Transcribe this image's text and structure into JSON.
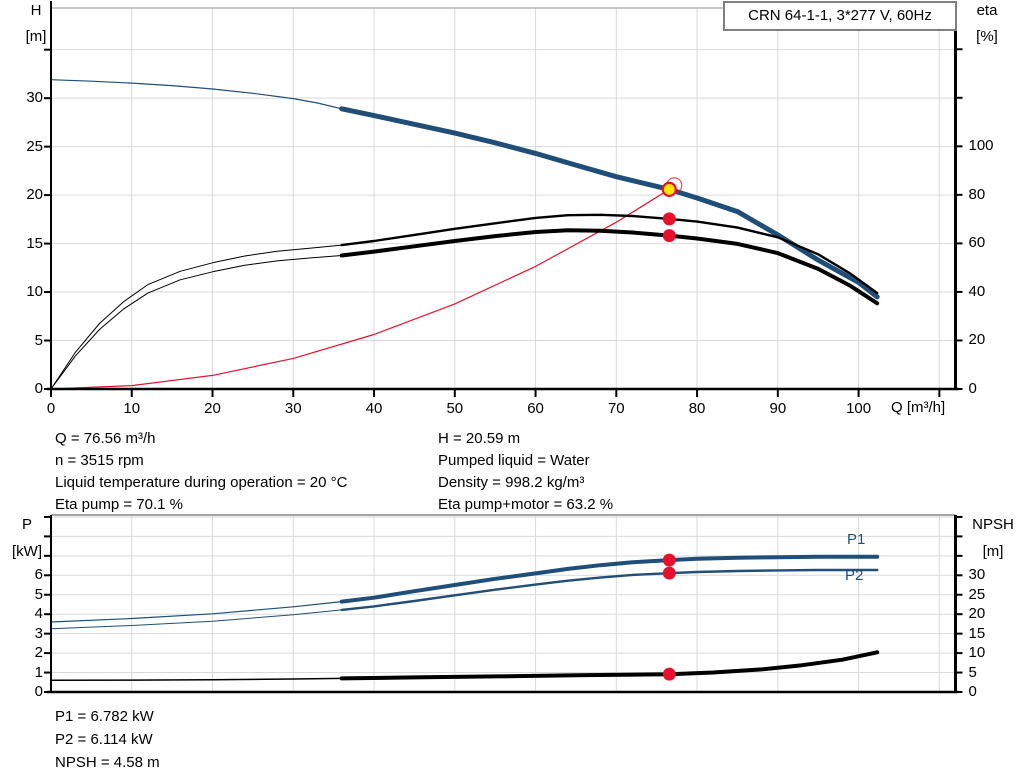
{
  "title_box": {
    "text": "CRN 64-1-1, 3*277 V, 60Hz"
  },
  "colors": {
    "curve_blue": "#1f4e79",
    "curve_black": "#000000",
    "curve_red": "#e8112d",
    "duty_yellow": "#ffe600",
    "grid": "#d9d9d9",
    "axis": "#000000",
    "border_gray": "#a6a6a6"
  },
  "info_top": {
    "left": [
      "Q = 76.56 m³/h",
      "n = 3515 rpm",
      "Liquid temperature during operation = 20 °C",
      "Eta pump = 70.1 %"
    ],
    "right": [
      "H = 20.59 m",
      "Pumped liquid = Water",
      "Density = 998.2 kg/m³",
      "Eta pump+motor = 63.2 %"
    ]
  },
  "info_bottom": [
    "P1 = 6.782 kW",
    "P2 = 6.114 kW",
    "NPSH = 4.58 m"
  ],
  "chart_data": [
    {
      "type": "line",
      "title": "Pump head / efficiency curves",
      "x_axis": {
        "label": "Q [m³/h]",
        "min": 0,
        "max": 112,
        "show_tick_marks": true,
        "ticks": [
          {
            "v": 0,
            "label": "0"
          },
          {
            "v": 10,
            "label": "10"
          },
          {
            "v": 20,
            "label": "20"
          },
          {
            "v": 30,
            "label": "30"
          },
          {
            "v": 40,
            "label": "40"
          },
          {
            "v": 50,
            "label": "50"
          },
          {
            "v": 60,
            "label": "60"
          },
          {
            "v": 70,
            "label": "70"
          },
          {
            "v": 80,
            "label": "80"
          },
          {
            "v": 90,
            "label": "90"
          },
          {
            "v": 100,
            "label": "100"
          },
          {
            "v": 110,
            "label": ""
          }
        ]
      },
      "y_left": {
        "label": [
          "H",
          "[m]"
        ],
        "min": 0,
        "max": 39.3,
        "ticks": [
          {
            "v": 0,
            "label": "0"
          },
          {
            "v": 5,
            "label": "5"
          },
          {
            "v": 10,
            "label": "10"
          },
          {
            "v": 15,
            "label": "15"
          },
          {
            "v": 20,
            "label": "20"
          },
          {
            "v": 25,
            "label": "25"
          },
          {
            "v": 30,
            "label": "30"
          },
          {
            "v": 35,
            "label": ""
          }
        ]
      },
      "y_right": {
        "label": [
          "eta",
          "[%]"
        ],
        "min": 0,
        "max": 157,
        "ticks": [
          {
            "v": 0,
            "label": "0"
          },
          {
            "v": 20,
            "label": "20"
          },
          {
            "v": 40,
            "label": "40"
          },
          {
            "v": 60,
            "label": "60"
          },
          {
            "v": 80,
            "label": "80"
          },
          {
            "v": 100,
            "label": "100"
          },
          {
            "v": 120,
            "label": ""
          },
          {
            "v": 140,
            "label": ""
          }
        ]
      },
      "series": [
        {
          "name": "head-curve",
          "axis": "left",
          "color": "#1f4e79",
          "split_q": 36,
          "w_thin": 1.2,
          "w_thick": 5,
          "points": [
            [
              0,
              31.9
            ],
            [
              5,
              31.75
            ],
            [
              10,
              31.55
            ],
            [
              15,
              31.3
            ],
            [
              20,
              30.95
            ],
            [
              25,
              30.5
            ],
            [
              30,
              29.95
            ],
            [
              33,
              29.5
            ],
            [
              36,
              28.9
            ],
            [
              40,
              28.2
            ],
            [
              45,
              27.3
            ],
            [
              50,
              26.4
            ],
            [
              55,
              25.4
            ],
            [
              60,
              24.3
            ],
            [
              65,
              23.1
            ],
            [
              70,
              21.9
            ],
            [
              76.56,
              20.59
            ],
            [
              80,
              19.7
            ],
            [
              85,
              18.3
            ],
            [
              90,
              15.9
            ],
            [
              95,
              13.3
            ],
            [
              100,
              11.0
            ],
            [
              102.3,
              9.5
            ]
          ]
        },
        {
          "name": "system-curve",
          "axis": "left",
          "color": "#e8112d",
          "split_q": null,
          "w_thin": 1.2,
          "w_thick": 1.2,
          "points": [
            [
              0,
              0
            ],
            [
              10,
              0.35
            ],
            [
              20,
              1.4
            ],
            [
              30,
              3.16
            ],
            [
              40,
              5.62
            ],
            [
              50,
              8.78
            ],
            [
              60,
              12.65
            ],
            [
              70,
              17.21
            ],
            [
              76.56,
              20.59
            ]
          ]
        },
        {
          "name": "eta-pump-curve",
          "axis": "right",
          "color": "#000000",
          "split_q": 36,
          "w_thin": 1,
          "w_thick": 2.4,
          "points": [
            [
              0,
              0
            ],
            [
              3,
              15
            ],
            [
              6,
              27
            ],
            [
              9,
              36
            ],
            [
              12,
              43
            ],
            [
              16,
              48.5
            ],
            [
              20,
              52
            ],
            [
              24,
              54.8
            ],
            [
              28,
              56.8
            ],
            [
              32,
              58
            ],
            [
              36,
              59.3
            ],
            [
              40,
              61
            ],
            [
              45,
              63.5
            ],
            [
              50,
              66
            ],
            [
              55,
              68.3
            ],
            [
              60,
              70.5
            ],
            [
              64,
              71.6
            ],
            [
              68,
              71.8
            ],
            [
              72,
              71.3
            ],
            [
              76.56,
              70.1
            ],
            [
              80,
              69
            ],
            [
              85,
              66.5
            ],
            [
              90,
              62.5
            ],
            [
              95,
              55.5
            ],
            [
              99,
              47.5
            ],
            [
              102.3,
              39.5
            ]
          ]
        },
        {
          "name": "eta-pump-motor-curve",
          "axis": "right",
          "color": "#000000",
          "split_q": 36,
          "w_thin": 1,
          "w_thick": 4,
          "points": [
            [
              0,
              0
            ],
            [
              3,
              13.5
            ],
            [
              6,
              24.5
            ],
            [
              9,
              33
            ],
            [
              12,
              39.5
            ],
            [
              16,
              45
            ],
            [
              20,
              48.3
            ],
            [
              24,
              51
            ],
            [
              28,
              52.8
            ],
            [
              32,
              54
            ],
            [
              36,
              55
            ],
            [
              40,
              56.6
            ],
            [
              45,
              58.8
            ],
            [
              50,
              61
            ],
            [
              55,
              63
            ],
            [
              60,
              64.7
            ],
            [
              64,
              65.4
            ],
            [
              68,
              65.2
            ],
            [
              72,
              64.5
            ],
            [
              76.56,
              63.2
            ],
            [
              80,
              62
            ],
            [
              85,
              59.8
            ],
            [
              90,
              56
            ],
            [
              95,
              49.5
            ],
            [
              99,
              42.5
            ],
            [
              102.3,
              35.3
            ]
          ]
        }
      ],
      "markers": [
        {
          "name": "duty-point",
          "q": 76.56,
          "v": 20.59,
          "axis": "left",
          "style": "duty"
        },
        {
          "name": "eta-pump-point",
          "q": 76.56,
          "v": 70.1,
          "axis": "right",
          "style": "dot"
        },
        {
          "name": "eta-pump-motor-point",
          "q": 76.56,
          "v": 63.2,
          "axis": "right",
          "style": "dot"
        }
      ],
      "curve_labels": []
    },
    {
      "type": "line",
      "title": "Power / NPSH curves",
      "x_axis": {
        "label": "",
        "min": 0,
        "max": 112,
        "show_tick_marks": false,
        "ticks": [
          {
            "v": 10,
            "label": ""
          },
          {
            "v": 20,
            "label": ""
          },
          {
            "v": 30,
            "label": ""
          },
          {
            "v": 40,
            "label": ""
          },
          {
            "v": 50,
            "label": ""
          },
          {
            "v": 60,
            "label": ""
          },
          {
            "v": 70,
            "label": ""
          },
          {
            "v": 80,
            "label": ""
          },
          {
            "v": 90,
            "label": ""
          },
          {
            "v": 100,
            "label": ""
          },
          {
            "v": 110,
            "label": ""
          }
        ]
      },
      "y_left": {
        "label": [
          "P",
          "[kW]"
        ],
        "min": 0,
        "max": 9.1,
        "ticks": [
          {
            "v": 0,
            "label": "0"
          },
          {
            "v": 1,
            "label": "1"
          },
          {
            "v": 2,
            "label": "2"
          },
          {
            "v": 3,
            "label": "3"
          },
          {
            "v": 4,
            "label": "4"
          },
          {
            "v": 5,
            "label": "5"
          },
          {
            "v": 6,
            "label": "6"
          },
          {
            "v": 7,
            "label": ""
          },
          {
            "v": 8,
            "label": ""
          },
          {
            "v": 9,
            "label": ""
          }
        ]
      },
      "y_right": {
        "label": [
          "NPSH",
          "[m]"
        ],
        "min": 0,
        "max": 45.5,
        "ticks": [
          {
            "v": 0,
            "label": "0"
          },
          {
            "v": 5,
            "label": "5"
          },
          {
            "v": 10,
            "label": "10"
          },
          {
            "v": 15,
            "label": "15"
          },
          {
            "v": 20,
            "label": "20"
          },
          {
            "v": 25,
            "label": "25"
          },
          {
            "v": 30,
            "label": "30"
          },
          {
            "v": 35,
            "label": ""
          },
          {
            "v": 40,
            "label": ""
          },
          {
            "v": 45,
            "label": ""
          }
        ]
      },
      "series": [
        {
          "name": "p1-curve",
          "axis": "left",
          "color": "#1f4e79",
          "split_q": 36,
          "w_thin": 1.2,
          "w_thick": 4,
          "points": [
            [
              0,
              3.6
            ],
            [
              10,
              3.78
            ],
            [
              20,
              4.02
            ],
            [
              30,
              4.38
            ],
            [
              36,
              4.65
            ],
            [
              40,
              4.85
            ],
            [
              45,
              5.18
            ],
            [
              50,
              5.5
            ],
            [
              55,
              5.82
            ],
            [
              60,
              6.1
            ],
            [
              64,
              6.33
            ],
            [
              68,
              6.52
            ],
            [
              72,
              6.67
            ],
            [
              76.56,
              6.78
            ],
            [
              80,
              6.85
            ],
            [
              85,
              6.9
            ],
            [
              90,
              6.93
            ],
            [
              95,
              6.95
            ],
            [
              102.3,
              6.95
            ]
          ]
        },
        {
          "name": "p2-curve",
          "axis": "left",
          "color": "#1f4e79",
          "split_q": 36,
          "w_thin": 1,
          "w_thick": 2.4,
          "points": [
            [
              0,
              3.25
            ],
            [
              10,
              3.42
            ],
            [
              20,
              3.64
            ],
            [
              30,
              3.97
            ],
            [
              36,
              4.22
            ],
            [
              40,
              4.4
            ],
            [
              45,
              4.68
            ],
            [
              50,
              4.97
            ],
            [
              55,
              5.26
            ],
            [
              60,
              5.52
            ],
            [
              64,
              5.72
            ],
            [
              68,
              5.88
            ],
            [
              72,
              6.02
            ],
            [
              76.56,
              6.11
            ],
            [
              80,
              6.17
            ],
            [
              85,
              6.22
            ],
            [
              90,
              6.25
            ],
            [
              95,
              6.27
            ],
            [
              102.3,
              6.27
            ]
          ]
        },
        {
          "name": "npsh-curve",
          "axis": "right",
          "color": "#000000",
          "split_q": 36,
          "w_thin": 1.5,
          "w_thick": 4,
          "points": [
            [
              0,
              3.0
            ],
            [
              10,
              3.05
            ],
            [
              20,
              3.15
            ],
            [
              30,
              3.35
            ],
            [
              36,
              3.5
            ],
            [
              45,
              3.75
            ],
            [
              55,
              4.0
            ],
            [
              65,
              4.3
            ],
            [
              76.56,
              4.58
            ],
            [
              82,
              5.0
            ],
            [
              88,
              5.8
            ],
            [
              93,
              6.9
            ],
            [
              98,
              8.3
            ],
            [
              102.3,
              10.2
            ]
          ]
        }
      ],
      "markers": [
        {
          "name": "p1-point",
          "q": 76.56,
          "v": 6.782,
          "axis": "left",
          "style": "dot"
        },
        {
          "name": "p2-point",
          "q": 76.56,
          "v": 6.114,
          "axis": "left",
          "style": "dot"
        },
        {
          "name": "npsh-point",
          "q": 76.56,
          "v": 4.58,
          "axis": "right",
          "style": "dot"
        }
      ],
      "curve_labels": [
        {
          "text": "P1"
        },
        {
          "text": "P2"
        }
      ]
    }
  ]
}
